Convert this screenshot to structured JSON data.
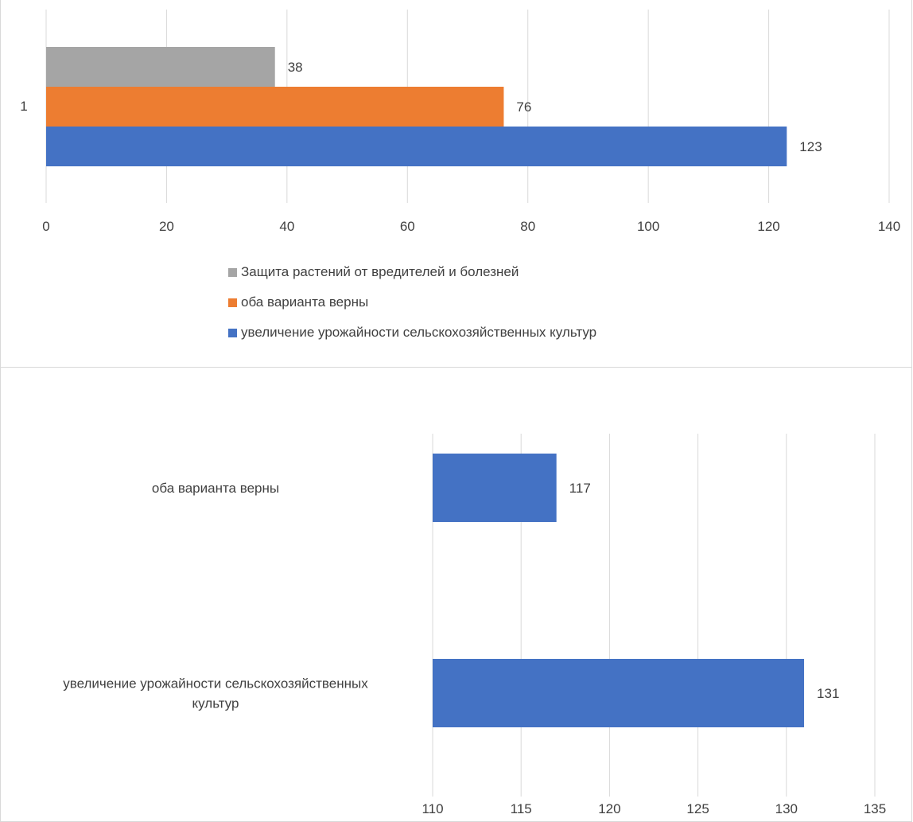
{
  "colors": {
    "gray": "#a5a5a5",
    "orange": "#ed7d31",
    "blue": "#4472c4",
    "grid": "#d9d9d9",
    "text": "#404040"
  },
  "chart_data": [
    {
      "type": "bar",
      "orientation": "horizontal",
      "categories": [
        "1"
      ],
      "series": [
        {
          "name": "Защита растений от вредителей и болезней",
          "values": [
            38
          ],
          "color": "#a5a5a5"
        },
        {
          "name": "оба варианта верны",
          "values": [
            76
          ],
          "color": "#ed7d31"
        },
        {
          "name": "увеличение урожайности сельскохозяйственных культур",
          "values": [
            123
          ],
          "color": "#4472c4"
        }
      ],
      "xlim": [
        0,
        140
      ],
      "xticks": [
        "0",
        "20",
        "40",
        "60",
        "80",
        "100",
        "120",
        "140"
      ],
      "grid": true,
      "legend_position": "bottom"
    },
    {
      "type": "bar",
      "orientation": "horizontal",
      "categories": [
        "оба варианта верны",
        "увеличение урожайности сельскохозяйственных культур"
      ],
      "category_label_lines": [
        [
          "оба варианта верны"
        ],
        [
          "увеличение урожайности сельскохозяйственных",
          "культур"
        ]
      ],
      "values": [
        117,
        131
      ],
      "color": "#4472c4",
      "xlim": [
        110,
        135
      ],
      "xticks": [
        "110",
        "115",
        "120",
        "125",
        "130",
        "135"
      ],
      "grid": true
    }
  ]
}
